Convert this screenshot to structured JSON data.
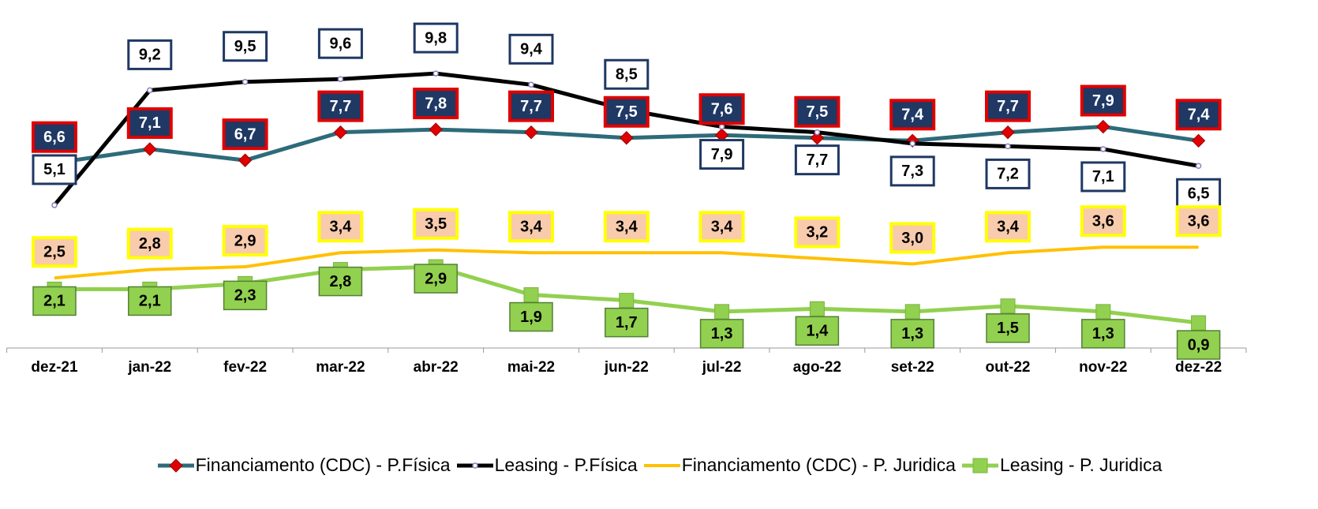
{
  "chart_data": {
    "type": "line",
    "categories": [
      "dez-21",
      "jan-22",
      "fev-22",
      "mar-22",
      "abr-22",
      "mai-22",
      "jun-22",
      "jul-22",
      "ago-22",
      "set-22",
      "out-22",
      "nov-22",
      "dez-22"
    ],
    "ylim": [
      0,
      12
    ],
    "series": [
      {
        "name": "Financiamento (CDC) - P.Física",
        "color": "#2e6b7a",
        "values": [
          6.6,
          7.1,
          6.7,
          7.7,
          7.8,
          7.7,
          7.5,
          7.6,
          7.5,
          7.4,
          7.7,
          7.9,
          7.4
        ],
        "value_labels": [
          "6,6",
          "7,1",
          "6,7",
          "7,7",
          "7,8",
          "7,7",
          "7,5",
          "7,6",
          "7,5",
          "7,4",
          "7,7",
          "7,9",
          "7,4"
        ]
      },
      {
        "name": "Leasing - P.Física",
        "color": "#000000",
        "values": [
          5.1,
          9.2,
          9.5,
          9.6,
          9.8,
          9.4,
          8.5,
          7.9,
          7.7,
          7.3,
          7.2,
          7.1,
          6.5
        ],
        "value_labels": [
          "5,1",
          "9,2",
          "9,5",
          "9,6",
          "9,8",
          "9,4",
          "8,5",
          "7,9",
          "7,7",
          "7,3",
          "7,2",
          "7,1",
          "6,5"
        ]
      },
      {
        "name": "Financiamento (CDC) - P. Juridica",
        "color": "#ffc000",
        "values": [
          2.5,
          2.8,
          2.9,
          3.4,
          3.5,
          3.4,
          3.4,
          3.4,
          3.2,
          3.0,
          3.4,
          3.6,
          3.6
        ],
        "value_labels": [
          "2,5",
          "2,8",
          "2,9",
          "3,4",
          "3,5",
          "3,4",
          "3,4",
          "3,4",
          "3,2",
          "3,0",
          "3,4",
          "3,6",
          "3,6"
        ]
      },
      {
        "name": "Leasing - P. Juridica",
        "color": "#92d050",
        "values": [
          2.1,
          2.1,
          2.3,
          2.8,
          2.9,
          1.9,
          1.7,
          1.3,
          1.4,
          1.3,
          1.5,
          1.3,
          0.9
        ],
        "value_labels": [
          "2,1",
          "2,1",
          "2,3",
          "2,8",
          "2,9",
          "1,9",
          "1,7",
          "1,3",
          "1,4",
          "1,3",
          "1,5",
          "1,3",
          "0,9"
        ]
      }
    ]
  }
}
